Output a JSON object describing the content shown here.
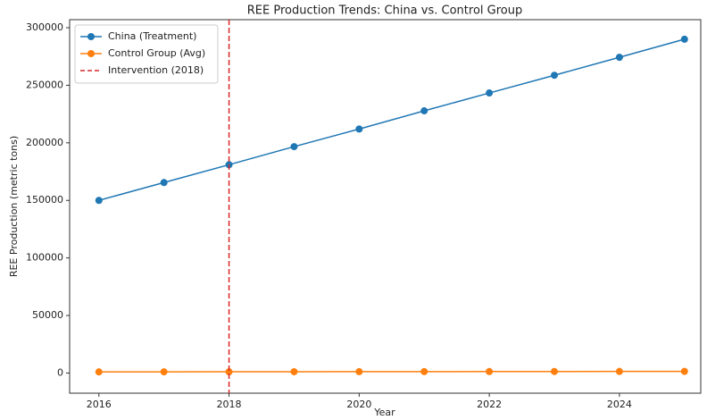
{
  "chart_data": {
    "type": "line",
    "title": "REE Production Trends: China vs. Control Group",
    "x_label": "Year",
    "y_label": "REE Production (metric tons)",
    "x": [
      2016,
      2017,
      2018,
      2019,
      2020,
      2021,
      2022,
      2023,
      2024,
      2025
    ],
    "series": [
      {
        "name": "China (Treatment)",
        "color": "#1f77b4",
        "values": [
          150000,
          165500,
          181000,
          196700,
          212000,
          227800,
          243300,
          258700,
          274300,
          290000
        ]
      },
      {
        "name": "Control Group (Avg)",
        "color": "#ff7f0e",
        "values": [
          1000,
          1050,
          1100,
          1150,
          1200,
          1250,
          1300,
          1350,
          1400,
          1450
        ]
      }
    ],
    "vline": {
      "x": 2018,
      "label": "Intervention (2018)",
      "color": "#d62728"
    },
    "xlim": [
      2015.55,
      2025.25
    ],
    "ylim": [
      -17500,
      307000
    ],
    "xticks": [
      2016,
      2018,
      2020,
      2022,
      2024
    ],
    "yticks": [
      0,
      50000,
      100000,
      150000,
      200000,
      250000,
      300000
    ],
    "legend": "upper left",
    "grid": false
  }
}
